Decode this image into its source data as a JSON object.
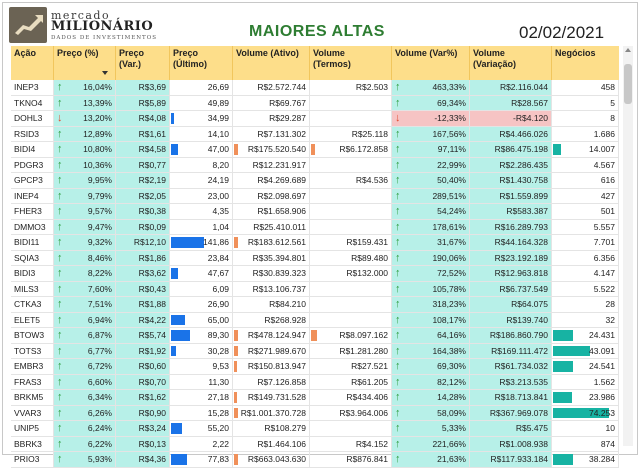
{
  "header": {
    "logo_line1": "mercado",
    "logo_line2": "MILIONÁRIO",
    "logo_line3": "DADOS DE INVESTIMENTOS",
    "title": "MAIORES ALTAS",
    "date": "02/02/2021"
  },
  "columns": [
    "Ação",
    "Preço (%)",
    "Preço\n(Var.)",
    "Preço\n(Último)",
    "Volume (Ativo)",
    "Volume\n(Termos)",
    "Volume (Var%)",
    "Volume\n(Variação)",
    "Negócios"
  ],
  "colors": {
    "header_bg": "#fdde8a",
    "teal_cells": "#b7f0e8",
    "neg_cells": "#f6c4c4",
    "up_arrow": "#2e9e3e",
    "down_arrow": "#e04b2e",
    "title": "#2e7d32",
    "bar_ultimo": "#1a73e8",
    "bar_volume": "#f0905a",
    "bar_negocios": "#17b3a3"
  },
  "rows": [
    {
      "acao": "INEP3",
      "pct": "16,04%",
      "var": "R$3,69",
      "ult": "26,69",
      "vol": "R$2.572.744",
      "volt": "R$2.503",
      "vvp": "463,33%",
      "vvv": "R$2.116.044",
      "neg": "458",
      "dir": "up",
      "ult_level": 0,
      "vol_level": 0,
      "volt_level": 0,
      "neg_level": 0
    },
    {
      "acao": "TKNO4",
      "pct": "13,39%",
      "var": "R$5,89",
      "ult": "49,89",
      "vol": "R$69.767",
      "volt": "",
      "vvp": "69,34%",
      "vvv": "R$28.567",
      "neg": "5",
      "dir": "up",
      "ult_level": 0,
      "vol_level": 0,
      "volt_level": 0,
      "neg_level": 0
    },
    {
      "acao": "DOHL3",
      "pct": "13,20%",
      "var": "R$4,08",
      "ult": "34,99",
      "vol": "R$29.287",
      "volt": "",
      "vvp": "-12,33%",
      "vvv": "-R$4.120",
      "neg": "8",
      "dir": "down",
      "ult_level": 0.05,
      "vol_level": 0,
      "volt_level": 0,
      "neg_level": 0
    },
    {
      "acao": "RSID3",
      "pct": "12,89%",
      "var": "R$1,61",
      "ult": "14,10",
      "vol": "R$7.131.302",
      "volt": "R$25.118",
      "vvp": "167,56%",
      "vvv": "R$4.466.026",
      "neg": "1.686",
      "dir": "up",
      "ult_level": 0,
      "vol_level": 0,
      "volt_level": 0,
      "neg_level": 0
    },
    {
      "acao": "BIDI4",
      "pct": "10,80%",
      "var": "R$4,58",
      "ult": "47,00",
      "vol": "R$175.520.540",
      "volt": "R$6.172.858",
      "vvp": "97,11%",
      "vvv": "R$86.475.198",
      "neg": "14.007",
      "dir": "up",
      "ult_level": 0.12,
      "vol_level": 0.05,
      "volt_level": 0.05,
      "neg_level": 0.12
    },
    {
      "acao": "PDGR3",
      "pct": "10,36%",
      "var": "R$0,77",
      "ult": "8,20",
      "vol": "R$12.231.917",
      "volt": "",
      "vvp": "22,99%",
      "vvv": "R$2.286.435",
      "neg": "4.567",
      "dir": "up",
      "ult_level": 0,
      "vol_level": 0,
      "volt_level": 0,
      "neg_level": 0
    },
    {
      "acao": "GPCP3",
      "pct": "9,95%",
      "var": "R$2,19",
      "ult": "24,19",
      "vol": "R$4.269.689",
      "volt": "R$4.536",
      "vvp": "50,40%",
      "vvv": "R$1.430.758",
      "neg": "616",
      "dir": "up",
      "ult_level": 0,
      "vol_level": 0,
      "volt_level": 0,
      "neg_level": 0
    },
    {
      "acao": "INEP4",
      "pct": "9,79%",
      "var": "R$2,05",
      "ult": "23,00",
      "vol": "R$2.098.697",
      "volt": "",
      "vvp": "289,51%",
      "vvv": "R$1.559.899",
      "neg": "427",
      "dir": "up",
      "ult_level": 0,
      "vol_level": 0,
      "volt_level": 0,
      "neg_level": 0
    },
    {
      "acao": "FHER3",
      "pct": "9,57%",
      "var": "R$0,38",
      "ult": "4,35",
      "vol": "R$1.658.906",
      "volt": "",
      "vvp": "54,24%",
      "vvv": "R$583.387",
      "neg": "501",
      "dir": "up",
      "ult_level": 0,
      "vol_level": 0,
      "volt_level": 0,
      "neg_level": 0
    },
    {
      "acao": "DMMO3",
      "pct": "9,47%",
      "var": "R$0,09",
      "ult": "1,04",
      "vol": "R$25.410.011",
      "volt": "",
      "vvp": "178,61%",
      "vvv": "R$16.289.793",
      "neg": "5.557",
      "dir": "up",
      "ult_level": 0,
      "vol_level": 0,
      "volt_level": 0,
      "neg_level": 0
    },
    {
      "acao": "BIDI11",
      "pct": "9,32%",
      "var": "R$12,10",
      "ult": "141,86",
      "vol": "R$183.612.561",
      "volt": "R$159.431",
      "vvp": "31,67%",
      "vvv": "R$44.164.328",
      "neg": "7.701",
      "dir": "up",
      "ult_level": 0.53,
      "vol_level": 0.05,
      "volt_level": 0,
      "neg_level": 0
    },
    {
      "acao": "SQIA3",
      "pct": "8,46%",
      "var": "R$1,86",
      "ult": "23,84",
      "vol": "R$35.394.801",
      "volt": "R$89.480",
      "vvp": "190,06%",
      "vvv": "R$23.192.189",
      "neg": "6.356",
      "dir": "up",
      "ult_level": 0,
      "vol_level": 0,
      "volt_level": 0,
      "neg_level": 0
    },
    {
      "acao": "BIDI3",
      "pct": "8,22%",
      "var": "R$3,62",
      "ult": "47,67",
      "vol": "R$30.839.323",
      "volt": "R$132.000",
      "vvp": "72,52%",
      "vvv": "R$12.963.818",
      "neg": "4.147",
      "dir": "up",
      "ult_level": 0.12,
      "vol_level": 0,
      "volt_level": 0,
      "neg_level": 0
    },
    {
      "acao": "MILS3",
      "pct": "7,60%",
      "var": "R$0,43",
      "ult": "6,09",
      "vol": "R$13.106.737",
      "volt": "",
      "vvp": "105,78%",
      "vvv": "R$6.737.549",
      "neg": "5.522",
      "dir": "up",
      "ult_level": 0,
      "vol_level": 0,
      "volt_level": 0,
      "neg_level": 0
    },
    {
      "acao": "CTKA3",
      "pct": "7,51%",
      "var": "R$1,88",
      "ult": "26,90",
      "vol": "R$84.210",
      "volt": "",
      "vvp": "318,23%",
      "vvv": "R$64.075",
      "neg": "28",
      "dir": "up",
      "ult_level": 0,
      "vol_level": 0,
      "volt_level": 0,
      "neg_level": 0
    },
    {
      "acao": "ELET5",
      "pct": "6,94%",
      "var": "R$4,22",
      "ult": "65,00",
      "vol": "R$268.928",
      "volt": "",
      "vvp": "108,17%",
      "vvv": "R$139.740",
      "neg": "32",
      "dir": "up",
      "ult_level": 0.22,
      "vol_level": 0,
      "volt_level": 0,
      "neg_level": 0
    },
    {
      "acao": "BTOW3",
      "pct": "6,87%",
      "var": "R$5,74",
      "ult": "89,30",
      "vol": "R$478.124.947",
      "volt": "R$8.097.162",
      "vvp": "64,16%",
      "vvv": "R$186.860.790",
      "neg": "24.431",
      "dir": "up",
      "ult_level": 0.3,
      "vol_level": 0.05,
      "volt_level": 0.07,
      "neg_level": 0.3
    },
    {
      "acao": "TOTS3",
      "pct": "6,77%",
      "var": "R$1,92",
      "ult": "30,28",
      "vol": "R$271.989.670",
      "volt": "R$1.281.280",
      "vvp": "164,38%",
      "vvv": "R$169.111.472",
      "neg": "43.091",
      "dir": "up",
      "ult_level": 0.08,
      "vol_level": 0.05,
      "volt_level": 0,
      "neg_level": 0.56
    },
    {
      "acao": "EMBR3",
      "pct": "6,72%",
      "var": "R$0,60",
      "ult": "9,53",
      "vol": "R$150.813.947",
      "volt": "R$27.521",
      "vvp": "69,30%",
      "vvv": "R$61.734.032",
      "neg": "24.541",
      "dir": "up",
      "ult_level": 0,
      "vol_level": 0.04,
      "volt_level": 0,
      "neg_level": 0.3
    },
    {
      "acao": "FRAS3",
      "pct": "6,60%",
      "var": "R$0,70",
      "ult": "11,30",
      "vol": "R$7.126.858",
      "volt": "R$61.205",
      "vvp": "82,12%",
      "vvv": "R$3.213.535",
      "neg": "1.562",
      "dir": "up",
      "ult_level": 0,
      "vol_level": 0,
      "volt_level": 0,
      "neg_level": 0
    },
    {
      "acao": "BRKM5",
      "pct": "6,34%",
      "var": "R$1,62",
      "ult": "27,18",
      "vol": "R$149.731.528",
      "volt": "R$434.406",
      "vvp": "14,28%",
      "vvv": "R$18.713.841",
      "neg": "23.986",
      "dir": "up",
      "ult_level": 0,
      "vol_level": 0.04,
      "volt_level": 0,
      "neg_level": 0.29
    },
    {
      "acao": "VVAR3",
      "pct": "6,26%",
      "var": "R$0,90",
      "ult": "15,28",
      "vol": "R$1.001.370.728",
      "volt": "R$3.964.006",
      "vvp": "58,09%",
      "vvv": "R$367.969.078",
      "neg": "74.253",
      "dir": "up",
      "ult_level": 0,
      "vol_level": 0.05,
      "volt_level": 0,
      "neg_level": 0.85
    },
    {
      "acao": "UNIP5",
      "pct": "6,24%",
      "var": "R$3,24",
      "ult": "55,20",
      "vol": "R$108.279",
      "volt": "",
      "vvp": "5,33%",
      "vvv": "R$5.475",
      "neg": "10",
      "dir": "up",
      "ult_level": 0.17,
      "vol_level": 0,
      "volt_level": 0,
      "neg_level": 0
    },
    {
      "acao": "BBRK3",
      "pct": "6,22%",
      "var": "R$0,13",
      "ult": "2,22",
      "vol": "R$1.464.106",
      "volt": "R$4.152",
      "vvp": "221,66%",
      "vvv": "R$1.008.938",
      "neg": "874",
      "dir": "up",
      "ult_level": 0,
      "vol_level": 0,
      "volt_level": 0,
      "neg_level": 0
    },
    {
      "acao": "PRIO3",
      "pct": "5,93%",
      "var": "R$4,36",
      "ult": "77,83",
      "vol": "R$663.043.630",
      "volt": "R$876.841",
      "vvp": "21,63%",
      "vvv": "R$117.933.184",
      "neg": "38.284",
      "dir": "up",
      "ult_level": 0.26,
      "vol_level": 0.05,
      "volt_level": 0,
      "neg_level": 0.3
    }
  ]
}
